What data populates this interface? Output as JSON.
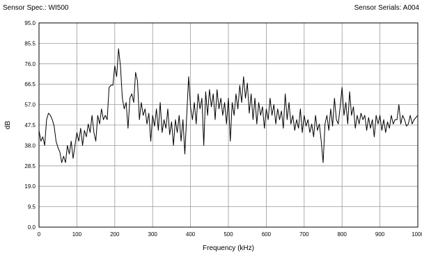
{
  "chart_data": {
    "type": "line",
    "header_left": "Sensor Spec.: WI500",
    "header_right": "Sensor Serials: A004",
    "xlabel": "Frequency (kHz)",
    "ylabel": "dB",
    "xlim": [
      0,
      1000
    ],
    "ylim": [
      0,
      95
    ],
    "xticks": [
      0,
      100,
      200,
      300,
      400,
      500,
      600,
      700,
      800,
      900,
      1000
    ],
    "yticks": [
      {
        "value": 0,
        "label": "0.0"
      },
      9.5,
      {
        "value": 19,
        "label": "19.0"
      },
      28.5,
      {
        "value": 38,
        "label": "38.0"
      },
      47.5,
      {
        "value": 57,
        "label": "57.0"
      },
      66.5,
      {
        "value": 76,
        "label": "76.0"
      },
      85.5,
      {
        "value": 95,
        "label": "95.0"
      }
    ],
    "grid": true,
    "x": [
      0,
      5,
      10,
      15,
      20,
      25,
      30,
      35,
      40,
      45,
      50,
      55,
      60,
      65,
      70,
      75,
      80,
      85,
      90,
      95,
      100,
      105,
      110,
      115,
      120,
      125,
      130,
      135,
      140,
      145,
      150,
      155,
      160,
      165,
      170,
      175,
      180,
      185,
      190,
      195,
      200,
      205,
      210,
      215,
      220,
      225,
      230,
      235,
      240,
      245,
      250,
      255,
      260,
      265,
      270,
      275,
      280,
      285,
      290,
      295,
      300,
      305,
      310,
      315,
      320,
      325,
      330,
      335,
      340,
      345,
      350,
      355,
      360,
      365,
      370,
      375,
      380,
      385,
      390,
      395,
      400,
      405,
      410,
      415,
      420,
      425,
      430,
      435,
      440,
      445,
      450,
      455,
      460,
      465,
      470,
      475,
      480,
      485,
      490,
      495,
      500,
      505,
      510,
      515,
      520,
      525,
      530,
      535,
      540,
      545,
      550,
      555,
      560,
      565,
      570,
      575,
      580,
      585,
      590,
      595,
      600,
      605,
      610,
      615,
      620,
      625,
      630,
      635,
      640,
      645,
      650,
      655,
      660,
      665,
      670,
      675,
      680,
      685,
      690,
      695,
      700,
      705,
      710,
      715,
      720,
      725,
      730,
      735,
      740,
      745,
      750,
      755,
      760,
      765,
      770,
      775,
      780,
      785,
      790,
      795,
      800,
      805,
      810,
      815,
      820,
      825,
      830,
      835,
      840,
      845,
      850,
      855,
      860,
      865,
      870,
      875,
      880,
      885,
      890,
      895,
      900,
      905,
      910,
      915,
      920,
      925,
      930,
      935,
      940,
      945,
      950,
      955,
      960,
      965,
      970,
      975,
      980,
      985,
      990,
      995,
      1000
    ],
    "series": [
      {
        "color": "#000000",
        "values": [
          45,
          40,
          42,
          38,
          50,
          53,
          52,
          50,
          47,
          40,
          37,
          35,
          30,
          33,
          30,
          38,
          34,
          40,
          32,
          38,
          44,
          40,
          46,
          38,
          45,
          42,
          48,
          44,
          52,
          44,
          40,
          52,
          48,
          55,
          50,
          52,
          50,
          65,
          66,
          66,
          75,
          70,
          83,
          75,
          60,
          55,
          58,
          46,
          60,
          62,
          58,
          72,
          68,
          50,
          58,
          52,
          55,
          48,
          53,
          40,
          52,
          47,
          55,
          45,
          58,
          44,
          50,
          46,
          55,
          43,
          49,
          38,
          50,
          44,
          52,
          40,
          50,
          34,
          52,
          70,
          56,
          50,
          58,
          48,
          62,
          55,
          60,
          38,
          63,
          52,
          64,
          56,
          62,
          50,
          64,
          55,
          60,
          52,
          58,
          48,
          60,
          40,
          58,
          52,
          62,
          55,
          66,
          58,
          70,
          60,
          67,
          53,
          62,
          50,
          60,
          48,
          58,
          52,
          56,
          46,
          55,
          50,
          60,
          52,
          57,
          48,
          55,
          50,
          54,
          46,
          62,
          50,
          58,
          48,
          52,
          45,
          50,
          46,
          55,
          44,
          52,
          47,
          50,
          44,
          48,
          42,
          52,
          45,
          48,
          40,
          30,
          48,
          52,
          45,
          55,
          47,
          60,
          50,
          48,
          56,
          65,
          52,
          58,
          48,
          63,
          52,
          56,
          46,
          52,
          48,
          53,
          50,
          52,
          45,
          51,
          46,
          50,
          42,
          52,
          48,
          52,
          45,
          50,
          44,
          49,
          46,
          52,
          48,
          50,
          50,
          57,
          48,
          52,
          50,
          47,
          48,
          52,
          48,
          50,
          51,
          52
        ]
      }
    ]
  }
}
